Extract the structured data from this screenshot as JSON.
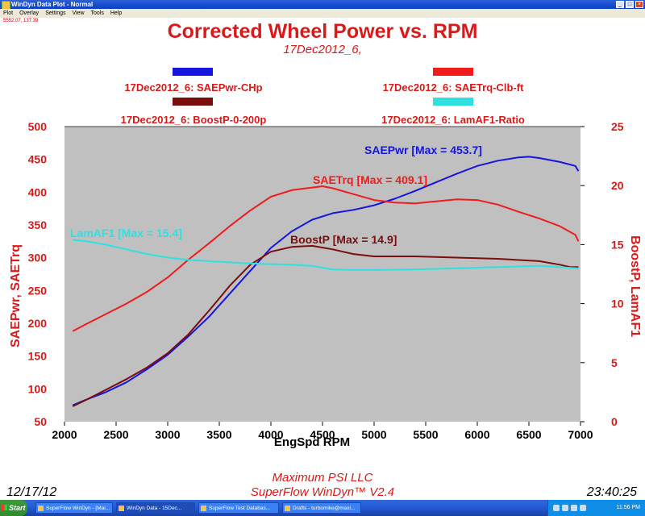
{
  "window": {
    "title": "WinDyn Data Plot - Normal",
    "menu": [
      "Plot",
      "Overlay",
      "Settings",
      "View",
      "Tools",
      "Help"
    ],
    "cursor_readout": "5552.07, 137.39"
  },
  "footer": {
    "date": "12/17/12",
    "company": "Maximum PSI LLC",
    "software": "SuperFlow WinDyn™ V2.4",
    "time": "23:40:25"
  },
  "taskbar": {
    "start_label": "Start",
    "tasks": [
      "SuperFlow WinDyn - [Mai...",
      "WinDyn Data - 15Dec...",
      "SuperFlow Test Databas...",
      "Drafts - turbomike@maxi..."
    ],
    "clock": "11:56 PM"
  },
  "colors": {
    "title": "#d81a1a",
    "plot_bg": "#c0c0c0",
    "left_axis": "#d81a1a",
    "right_axis": "#d81a1a",
    "power": "#1515e0",
    "torque": "#ee1c1c",
    "boost": "#7a0d0d",
    "lambda": "#30e0e0"
  },
  "chart_data": {
    "type": "line",
    "title": "Corrected Wheel Power vs. RPM",
    "subtitle": "17Dec2012_6,",
    "xlabel": "EngSpd RPM",
    "ylabel_left": "SAEPwr, SAETrq",
    "ylabel_right": "BoostP, LamAF1",
    "xlim": [
      2000,
      7000
    ],
    "ylim_left": [
      50,
      500
    ],
    "ylim_right": [
      0,
      25
    ],
    "x_ticks": [
      "2000",
      "2500",
      "3000",
      "3500",
      "4000",
      "4500",
      "5000",
      "5500",
      "6000",
      "6500",
      "7000"
    ],
    "y_left_ticks": [
      "500",
      "450",
      "400",
      "350",
      "300",
      "250",
      "200",
      "150",
      "100",
      "50"
    ],
    "y_right_ticks": [
      "25",
      "20",
      "15",
      "10",
      "5",
      "0"
    ],
    "grid": false,
    "legend_position": "top",
    "legend": [
      {
        "label": "17Dec2012_6: SAEPwr-CHp",
        "color": "#1515e0"
      },
      {
        "label": "17Dec2012_6: SAETrq-Clb-ft",
        "color": "#ee1c1c"
      },
      {
        "label": "17Dec2012_6: BoostP-0-200p",
        "color": "#7a0d0d"
      },
      {
        "label": "17Dec2012_6: LamAF1-Ratio",
        "color": "#30e0e0"
      }
    ],
    "annotations": [
      {
        "text": "SAEPwr [Max = 453.7]",
        "series": "SAEPwr-CHp"
      },
      {
        "text": "SAETrq [Max = 409.1]",
        "series": "SAETrq-Clb-ft"
      },
      {
        "text": "BoostP [Max = 14.9]",
        "series": "BoostP-0-200p"
      },
      {
        "text": "LamAF1 [Max = 15.4]",
        "series": "LamAF1-Ratio"
      }
    ],
    "series": [
      {
        "name": "SAEPwr-CHp",
        "axis": "left",
        "x": [
          2080,
          2200,
          2400,
          2600,
          2800,
          3000,
          3200,
          3400,
          3600,
          3800,
          4000,
          4200,
          4400,
          4600,
          4800,
          5000,
          5200,
          5400,
          5600,
          5800,
          6000,
          6200,
          6400,
          6500,
          6600,
          6800,
          6950,
          6980
        ],
        "values": [
          75,
          83,
          95,
          110,
          130,
          152,
          180,
          210,
          245,
          280,
          315,
          340,
          358,
          368,
          373,
          380,
          390,
          402,
          415,
          428,
          440,
          448,
          453,
          454,
          452,
          446,
          440,
          432
        ]
      },
      {
        "name": "SAETrq-Clb-ft",
        "axis": "left",
        "x": [
          2080,
          2200,
          2400,
          2600,
          2800,
          3000,
          3200,
          3400,
          3600,
          3800,
          4000,
          4200,
          4400,
          4500,
          4600,
          4800,
          5000,
          5200,
          5400,
          5600,
          5800,
          6000,
          6200,
          6400,
          6600,
          6800,
          6950,
          6980
        ],
        "values": [
          188,
          198,
          214,
          230,
          248,
          270,
          297,
          322,
          348,
          372,
          393,
          403,
          407,
          409,
          406,
          397,
          388,
          384,
          383,
          386,
          389,
          388,
          381,
          370,
          360,
          348,
          335,
          325
        ]
      },
      {
        "name": "BoostP-0-200p",
        "axis": "right",
        "x": [
          2080,
          2200,
          2400,
          2600,
          2800,
          3000,
          3200,
          3400,
          3600,
          3800,
          4000,
          4200,
          4400,
          4600,
          4800,
          5000,
          5400,
          5800,
          6200,
          6600,
          6800,
          6900,
          6980
        ],
        "values": [
          1.3,
          1.8,
          2.7,
          3.6,
          4.6,
          5.8,
          7.4,
          9.4,
          11.5,
          13.3,
          14.4,
          14.8,
          14.9,
          14.6,
          14.2,
          14.0,
          14.0,
          13.9,
          13.8,
          13.6,
          13.3,
          13.1,
          13.1
        ]
      },
      {
        "name": "LamAF1-Ratio",
        "axis": "right",
        "x": [
          2080,
          2200,
          2400,
          2600,
          2800,
          3000,
          3200,
          3400,
          3600,
          3800,
          4000,
          4200,
          4400,
          4600,
          4800,
          5000,
          5400,
          5800,
          6200,
          6600,
          6980
        ],
        "values": [
          15.4,
          15.3,
          15.0,
          14.6,
          14.2,
          13.9,
          13.7,
          13.6,
          13.5,
          13.4,
          13.35,
          13.3,
          13.2,
          12.9,
          12.85,
          12.85,
          12.9,
          13.0,
          13.1,
          13.2,
          13.0
        ]
      }
    ]
  }
}
